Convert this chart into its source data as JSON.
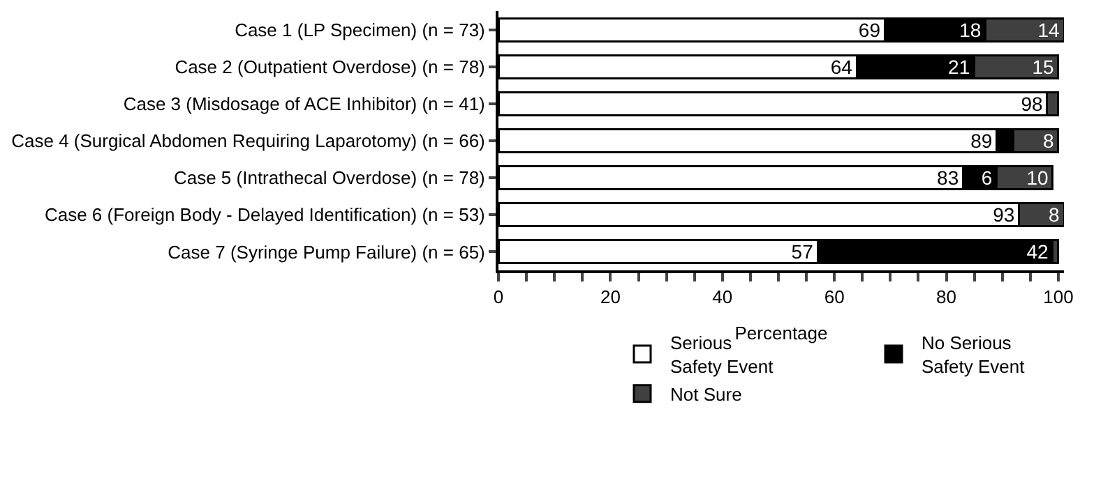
{
  "chart_data": {
    "type": "bar",
    "orientation": "horizontal",
    "stacked": true,
    "categories": [
      "Case 1 (LP Specimen) (n = 73)",
      "Case 2 (Outpatient Overdose) (n = 78)",
      "Case 3 (Misdosage of ACE Inhibitor) (n = 41)",
      "Case 4 (Surgical Abdomen Requiring Laparotomy) (n = 66)",
      "Case 5 (Intrathecal Overdose) (n = 78)",
      "Case 6 (Foreign Body - Delayed Identification) (n = 53)",
      "Case 7 (Syringe Pump Failure) (n = 65)"
    ],
    "series": [
      {
        "name": "Serious\nSafety Event",
        "color": "#ffffff",
        "values": [
          69,
          64,
          98,
          89,
          83,
          93,
          57
        ],
        "value_labels": [
          "69",
          "64",
          "98",
          "89",
          "83",
          "93",
          "57"
        ]
      },
      {
        "name": "No Serious\nSafety Event",
        "color": "#000000",
        "values": [
          18,
          21,
          0,
          3,
          6,
          0,
          42
        ],
        "value_labels": [
          "18",
          "21",
          null,
          null,
          "6",
          null,
          "42"
        ]
      },
      {
        "name": "Not Sure",
        "color": "#404040",
        "values": [
          14,
          15,
          2,
          8,
          10,
          8,
          1
        ],
        "value_labels": [
          "14",
          "15",
          null,
          "8",
          "10",
          "8",
          null
        ]
      }
    ],
    "xlabel": "Percentage",
    "xlim": [
      0,
      101
    ],
    "xticks": [
      0,
      {
        "value": 5,
        "label": null
      },
      {
        "value": 10,
        "label": null
      },
      {
        "value": 15,
        "label": null
      },
      20,
      {
        "value": 25,
        "label": null
      },
      {
        "value": 30,
        "label": null
      },
      {
        "value": 35,
        "label": null
      },
      40,
      {
        "value": 45,
        "label": null
      },
      {
        "value": 50,
        "label": null
      },
      {
        "value": 55,
        "label": null
      },
      60,
      {
        "value": 65,
        "label": null
      },
      {
        "value": 70,
        "label": null
      },
      {
        "value": 75,
        "label": null
      },
      80,
      {
        "value": 85,
        "label": null
      },
      {
        "value": 90,
        "label": null
      },
      {
        "value": 95,
        "label": null
      },
      100
    ],
    "legend": "bottom"
  }
}
